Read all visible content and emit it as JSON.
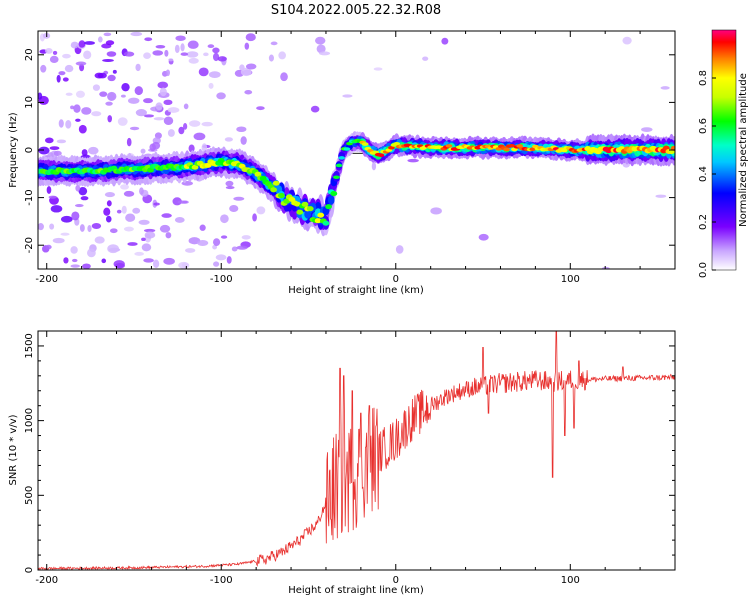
{
  "title": "S104.2022.005.22.32.R08",
  "chart_data": [
    {
      "type": "heatmap",
      "xlabel": "Height of straight line (km)",
      "ylabel": "Frequency (Hz)",
      "xlim": [
        -205,
        160
      ],
      "ylim": [
        -25,
        25
      ],
      "xticks": [
        -200,
        -100,
        0,
        100
      ],
      "yticks": [
        -20,
        -10,
        0,
        10,
        20
      ],
      "colorbar": {
        "label": "Normalized spectral amplitude",
        "range": [
          0,
          1
        ],
        "ticks": [
          "0.0",
          "0.2",
          "0.4",
          "0.6",
          "0.8"
        ]
      },
      "ridge": [
        {
          "x": -205,
          "y": -4.5
        },
        {
          "x": -180,
          "y": -4.5
        },
        {
          "x": -150,
          "y": -4
        },
        {
          "x": -120,
          "y": -3.5
        },
        {
          "x": -100,
          "y": -2.5
        },
        {
          "x": -90,
          "y": -3
        },
        {
          "x": -80,
          "y": -5
        },
        {
          "x": -70,
          "y": -8
        },
        {
          "x": -60,
          "y": -11
        },
        {
          "x": -50,
          "y": -13
        },
        {
          "x": -40,
          "y": -14
        },
        {
          "x": -30,
          "y": 0
        },
        {
          "x": -25,
          "y": 1.5
        },
        {
          "x": -20,
          "y": 2
        },
        {
          "x": -15,
          "y": 0
        },
        {
          "x": -10,
          "y": -1
        },
        {
          "x": 0,
          "y": 1
        },
        {
          "x": 20,
          "y": 0.5
        },
        {
          "x": 40,
          "y": 0.5
        },
        {
          "x": 80,
          "y": 0.5
        },
        {
          "x": 100,
          "y": 0
        },
        {
          "x": 160,
          "y": 0
        }
      ]
    },
    {
      "type": "line",
      "xlabel": "Height of straight line (km)",
      "ylabel": "SNR (10 * v/v)",
      "xlim": [
        -205,
        160
      ],
      "ylim": [
        0,
        1600
      ],
      "xticks": [
        -200,
        -100,
        0,
        100
      ],
      "yticks": [
        0,
        500,
        1000,
        1500
      ],
      "series": [
        {
          "color": "#e8302e",
          "points": [
            {
              "x": -205,
              "y": 10
            },
            {
              "x": -150,
              "y": 15
            },
            {
              "x": -110,
              "y": 25
            },
            {
              "x": -90,
              "y": 40
            },
            {
              "x": -75,
              "y": 70
            },
            {
              "x": -65,
              "y": 120
            },
            {
              "x": -55,
              "y": 200
            },
            {
              "x": -45,
              "y": 310
            },
            {
              "x": -40,
              "y": 450
            },
            {
              "x": -35,
              "y": 550
            },
            {
              "x": -30,
              "y": 600
            },
            {
              "x": -25,
              "y": 620
            },
            {
              "x": -20,
              "y": 690
            },
            {
              "x": -15,
              "y": 740
            },
            {
              "x": -10,
              "y": 780
            },
            {
              "x": -5,
              "y": 830
            },
            {
              "x": 0,
              "y": 870
            },
            {
              "x": 5,
              "y": 950
            },
            {
              "x": 10,
              "y": 1020
            },
            {
              "x": 20,
              "y": 1100
            },
            {
              "x": 30,
              "y": 1170
            },
            {
              "x": 40,
              "y": 1210
            },
            {
              "x": 50,
              "y": 1230
            },
            {
              "x": 60,
              "y": 1250
            },
            {
              "x": 70,
              "y": 1260
            },
            {
              "x": 80,
              "y": 1270
            },
            {
              "x": 90,
              "y": 1260
            },
            {
              "x": 100,
              "y": 1270
            },
            {
              "x": 120,
              "y": 1280
            },
            {
              "x": 140,
              "y": 1285
            },
            {
              "x": 160,
              "y": 1290
            }
          ],
          "spikes": [
            {
              "x": -32,
              "y": 1350
            },
            {
              "x": -30,
              "y": 1300
            },
            {
              "x": -25,
              "y": 1200
            },
            {
              "x": -20,
              "y": 1050
            },
            {
              "x": -15,
              "y": 1100
            },
            {
              "x": 50,
              "y": 1490
            },
            {
              "x": 53,
              "y": 1050
            },
            {
              "x": 90,
              "y": 620
            },
            {
              "x": 92,
              "y": 1600
            },
            {
              "x": 97,
              "y": 900
            },
            {
              "x": 102,
              "y": 950
            },
            {
              "x": 105,
              "y": 1400
            },
            {
              "x": 130,
              "y": 1360
            }
          ]
        }
      ]
    }
  ]
}
